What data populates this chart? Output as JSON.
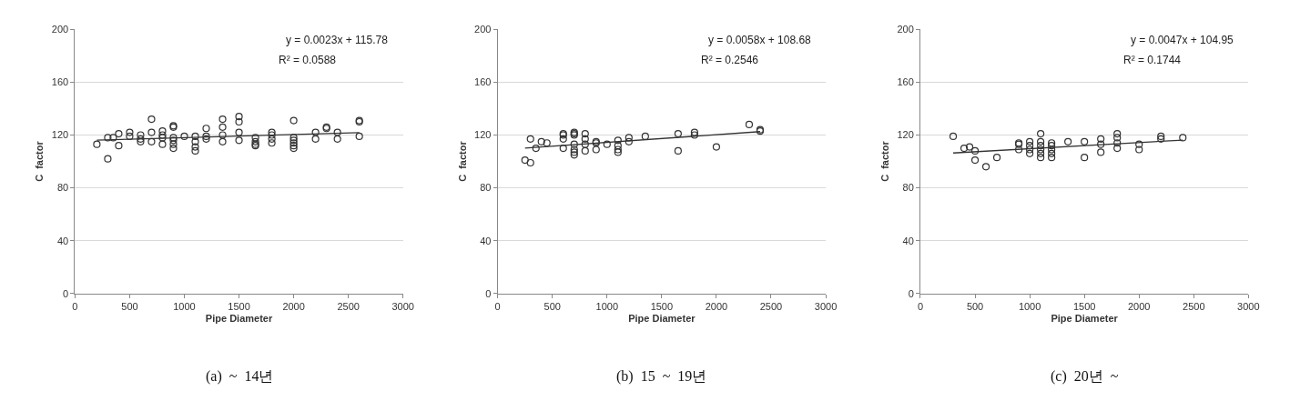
{
  "chart_data": [
    {
      "type": "scatter",
      "xlabel": "Pipe Diameter",
      "ylabel": "C  factor",
      "xlim": [
        0,
        3000
      ],
      "xticks": [
        0,
        500,
        1000,
        1500,
        2000,
        2500,
        3000
      ],
      "ylim": [
        0,
        200
      ],
      "yticks": [
        0,
        40,
        80,
        120,
        160,
        200
      ],
      "grid": "y",
      "annotations": [
        "y = 0.0023x + 115.78",
        "R² = 0.0588",
        "(a)  ~  14년"
      ],
      "series": [
        {
          "marker": "circle",
          "color": "#333333",
          "x": [
            200,
            300,
            300,
            350,
            400,
            400,
            500,
            500,
            600,
            600,
            600,
            700,
            700,
            700,
            800,
            800,
            800,
            800,
            900,
            900,
            900,
            900,
            900,
            900,
            1000,
            1100,
            1100,
            1100,
            1100,
            1200,
            1200,
            1200,
            1350,
            1350,
            1350,
            1350,
            1500,
            1500,
            1500,
            1500,
            1650,
            1650,
            1650,
            1650,
            1800,
            1800,
            1800,
            1800,
            2000,
            2000,
            2000,
            2000,
            2000,
            2000,
            2200,
            2200,
            2300,
            2300,
            2400,
            2400,
            2600,
            2600,
            2600
          ],
          "values": [
            113,
            102,
            118,
            118,
            112,
            121,
            122,
            119,
            117,
            115,
            120,
            132,
            122,
            115,
            120,
            118,
            113,
            123,
            127,
            126,
            118,
            113,
            110,
            116,
            119,
            119,
            115,
            111,
            108,
            125,
            119,
            117,
            132,
            126,
            120,
            115,
            134,
            130,
            122,
            116,
            118,
            115,
            113,
            112,
            122,
            120,
            117,
            114,
            131,
            118,
            116,
            114,
            112,
            110,
            122,
            117,
            126,
            125,
            122,
            117,
            131,
            130,
            119
          ]
        },
        {
          "type": "line",
          "color": "#333333",
          "x": [
            200,
            2600
          ],
          "marker": "none",
          "values": [
            116.2,
            121.8
          ]
        }
      ]
    },
    {
      "type": "scatter",
      "xlabel": "Pipe Diameter",
      "ylabel": "C  factor",
      "xlim": [
        0,
        3000
      ],
      "xticks": [
        0,
        500,
        1000,
        1500,
        2000,
        2500,
        3000
      ],
      "ylim": [
        0,
        200
      ],
      "yticks": [
        0,
        40,
        80,
        120,
        160,
        200
      ],
      "grid": "y",
      "annotations": [
        "y = 0.0058x + 108.68",
        "R² = 0.2546",
        "(b)  15  ~  19년"
      ],
      "series": [
        {
          "marker": "circle",
          "color": "#333333",
          "x": [
            250,
            300,
            300,
            350,
            400,
            450,
            600,
            600,
            600,
            600,
            700,
            700,
            700,
            700,
            700,
            700,
            700,
            800,
            800,
            800,
            800,
            900,
            900,
            900,
            1000,
            1100,
            1100,
            1100,
            1100,
            1200,
            1200,
            1350,
            1650,
            1650,
            1800,
            1800,
            2000,
            2300,
            2400,
            2400
          ],
          "values": [
            101,
            99,
            117,
            110,
            115,
            114,
            121,
            120,
            117,
            110,
            122,
            121,
            120,
            113,
            109,
            107,
            105,
            121,
            117,
            113,
            108,
            115,
            114,
            109,
            113,
            116,
            112,
            109,
            107,
            118,
            115,
            119,
            121,
            108,
            122,
            120,
            111,
            128,
            124,
            123
          ]
        },
        {
          "type": "line",
          "color": "#333333",
          "x": [
            250,
            2400
          ],
          "marker": "none",
          "values": [
            110.1,
            122.6
          ]
        }
      ]
    },
    {
      "type": "scatter",
      "xlabel": "Pipe Diameter",
      "ylabel": "C  factor",
      "xlim": [
        0,
        3000
      ],
      "xticks": [
        0,
        500,
        1000,
        1500,
        2000,
        2500,
        3000
      ],
      "ylim": [
        0,
        200
      ],
      "yticks": [
        0,
        40,
        80,
        120,
        160,
        200
      ],
      "grid": "y",
      "annotations": [
        "y = 0.0047x + 104.95",
        "R² = 0.1744",
        "(c)  20년  ~"
      ],
      "series": [
        {
          "marker": "circle",
          "color": "#333333",
          "x": [
            300,
            400,
            450,
            500,
            500,
            600,
            700,
            900,
            900,
            900,
            1000,
            1000,
            1000,
            1000,
            1100,
            1100,
            1100,
            1100,
            1100,
            1100,
            1200,
            1200,
            1200,
            1200,
            1200,
            1350,
            1500,
            1500,
            1650,
            1650,
            1650,
            1800,
            1800,
            1800,
            1800,
            2000,
            2000,
            2200,
            2200,
            2400
          ],
          "values": [
            119,
            110,
            111,
            108,
            101,
            96,
            103,
            114,
            113,
            109,
            115,
            112,
            109,
            106,
            121,
            115,
            112,
            109,
            106,
            103,
            114,
            112,
            109,
            106,
            103,
            115,
            115,
            103,
            117,
            113,
            107,
            121,
            118,
            114,
            110,
            113,
            109,
            119,
            117,
            118
          ]
        },
        {
          "type": "line",
          "color": "#333333",
          "x": [
            300,
            2400
          ],
          "marker": "none",
          "values": [
            106.4,
            116.2
          ]
        }
      ]
    }
  ]
}
